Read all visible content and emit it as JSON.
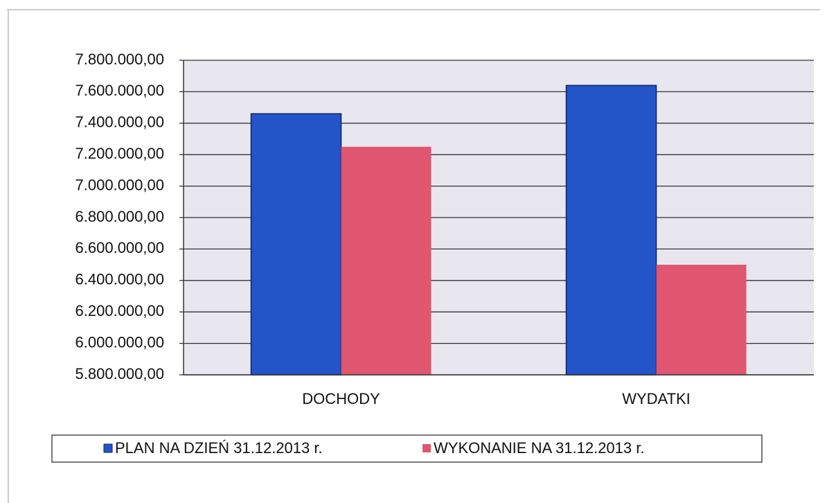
{
  "chart_data": {
    "type": "bar",
    "categories": [
      "DOCHODY",
      "WYDATKI"
    ],
    "series": [
      {
        "name": "PLAN NA DZIEŃ 31.12.2013 r.",
        "color": "#2355c8",
        "values": [
          7460000,
          7640000
        ]
      },
      {
        "name": "WYKONANIE NA 31.12.2013 r.",
        "color": "#e05670",
        "values": [
          7250000,
          6500000
        ]
      }
    ],
    "ylim": [
      5800000,
      7800000
    ],
    "yticks": [
      {
        "value": 5800000,
        "label": "5.800.000,00"
      },
      {
        "value": 6000000,
        "label": "6.000.000,00"
      },
      {
        "value": 6200000,
        "label": "6.200.000,00"
      },
      {
        "value": 6400000,
        "label": "6.400.000,00"
      },
      {
        "value": 6600000,
        "label": "6.600.000,00"
      },
      {
        "value": 6800000,
        "label": "6.800.000,00"
      },
      {
        "value": 7000000,
        "label": "7.000.000,00"
      },
      {
        "value": 7200000,
        "label": "7.200.000,00"
      },
      {
        "value": 7400000,
        "label": "7.400.000,00"
      },
      {
        "value": 7600000,
        "label": "7.600.000,00"
      },
      {
        "value": 7800000,
        "label": "7.800.000,00"
      }
    ],
    "grid": true,
    "legend": "bottom"
  }
}
